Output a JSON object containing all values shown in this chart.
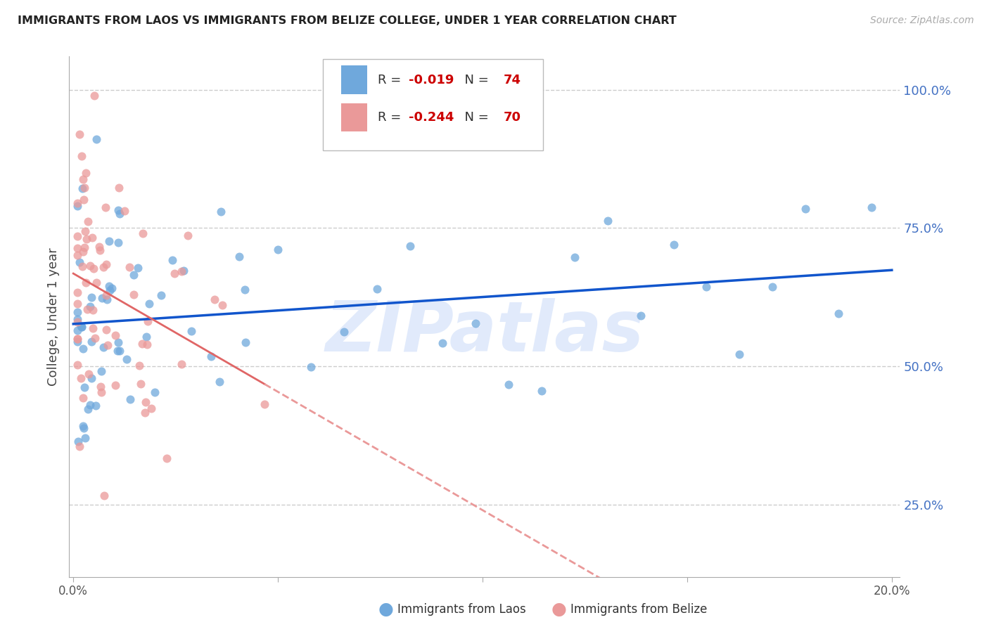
{
  "title": "IMMIGRANTS FROM LAOS VS IMMIGRANTS FROM BELIZE COLLEGE, UNDER 1 YEAR CORRELATION CHART",
  "source": "Source: ZipAtlas.com",
  "ylabel": "College, Under 1 year",
  "legend_laos": "Immigrants from Laos",
  "legend_belize": "Immigrants from Belize",
  "R_laos": -0.019,
  "N_laos": 74,
  "R_belize": -0.244,
  "N_belize": 70,
  "color_laos": "#6fa8dc",
  "color_belize": "#ea9999",
  "color_laos_line": "#1155cc",
  "color_belize_line_solid": "#e06666",
  "color_belize_line_dash": "#ea9999",
  "color_r_value": "#cc0000",
  "color_n_value": "#cc0000",
  "watermark": "ZIPatlas",
  "watermark_color": "#c9daf8",
  "background_color": "#ffffff",
  "grid_color": "#cccccc",
  "axis_color": "#aaaaaa",
  "right_tick_color": "#4472c4",
  "xlim": [
    -0.001,
    0.202
  ],
  "ylim": [
    0.12,
    1.06
  ],
  "yticks_right": [
    1.0,
    0.75,
    0.5,
    0.25
  ],
  "yticklabels_right": [
    "100.0%",
    "75.0%",
    "50.0%",
    "25.0%"
  ],
  "seed_laos": 42,
  "seed_belize": 99
}
